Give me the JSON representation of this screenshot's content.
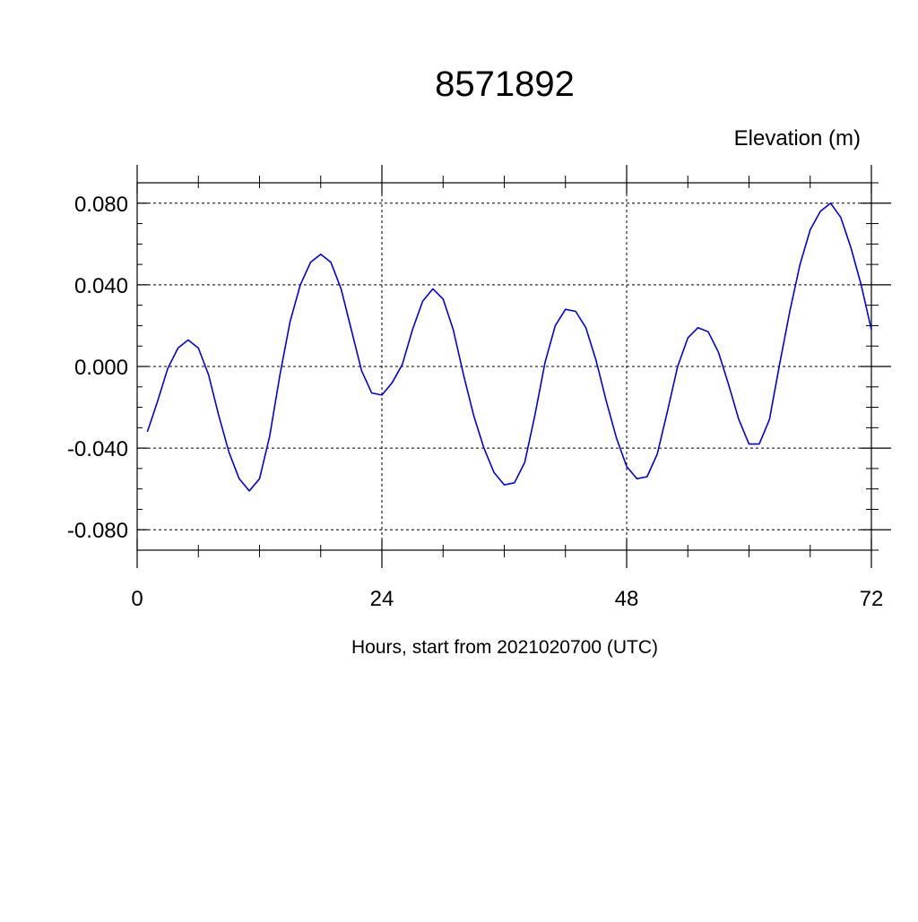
{
  "chart_data": {
    "type": "line",
    "title": "8571892",
    "units_label": "Elevation (m)",
    "xlabel": "Hours, start from 2021020700 (UTC)",
    "ylabel": "",
    "xlim": [
      0,
      72
    ],
    "ylim": [
      -0.09,
      0.09
    ],
    "x_ticks": [
      0,
      24,
      48,
      72
    ],
    "x_tick_labels": [
      "0",
      "24",
      "48",
      "72"
    ],
    "y_ticks": [
      -0.08,
      -0.04,
      0.0,
      0.04,
      0.08
    ],
    "y_tick_labels": [
      "-0.080",
      "-0.040",
      "0.000",
      "0.040",
      "0.080"
    ],
    "grid": true,
    "line_color": "#0000ee",
    "series": [
      {
        "x": [
          1,
          2,
          3,
          4,
          5,
          6,
          7,
          8,
          9,
          10,
          11,
          12,
          13,
          14,
          15,
          16,
          17,
          18,
          19,
          20,
          21,
          22,
          23,
          24,
          25,
          26,
          27,
          28,
          29,
          30,
          31,
          32,
          33,
          34,
          35,
          36,
          37,
          38,
          39,
          40,
          41,
          42,
          43,
          44,
          45,
          46,
          47,
          48,
          49,
          50,
          51,
          52,
          53,
          54,
          55,
          56,
          57,
          58,
          59,
          60,
          61,
          62,
          63,
          64,
          65,
          66,
          67,
          68,
          69,
          70,
          71,
          72
        ],
        "values": [
          -0.032,
          -0.017,
          -0.001,
          0.009,
          0.013,
          0.009,
          -0.004,
          -0.024,
          -0.042,
          -0.055,
          -0.061,
          -0.055,
          -0.034,
          -0.004,
          0.022,
          0.04,
          0.051,
          0.055,
          0.051,
          0.038,
          0.018,
          -0.002,
          -0.013,
          -0.014,
          -0.008,
          0.001,
          0.018,
          0.032,
          0.038,
          0.033,
          0.018,
          -0.004,
          -0.024,
          -0.04,
          -0.052,
          -0.058,
          -0.057,
          -0.047,
          -0.024,
          0.002,
          0.02,
          0.028,
          0.027,
          0.019,
          0.003,
          -0.017,
          -0.035,
          -0.049,
          -0.055,
          -0.054,
          -0.043,
          -0.022,
          0.0,
          0.014,
          0.019,
          0.017,
          0.007,
          -0.009,
          -0.026,
          -0.038,
          -0.038,
          -0.026,
          0.001,
          0.027,
          0.05,
          0.067,
          0.076,
          0.08,
          0.073,
          0.058,
          0.04,
          0.018
        ]
      }
    ]
  }
}
